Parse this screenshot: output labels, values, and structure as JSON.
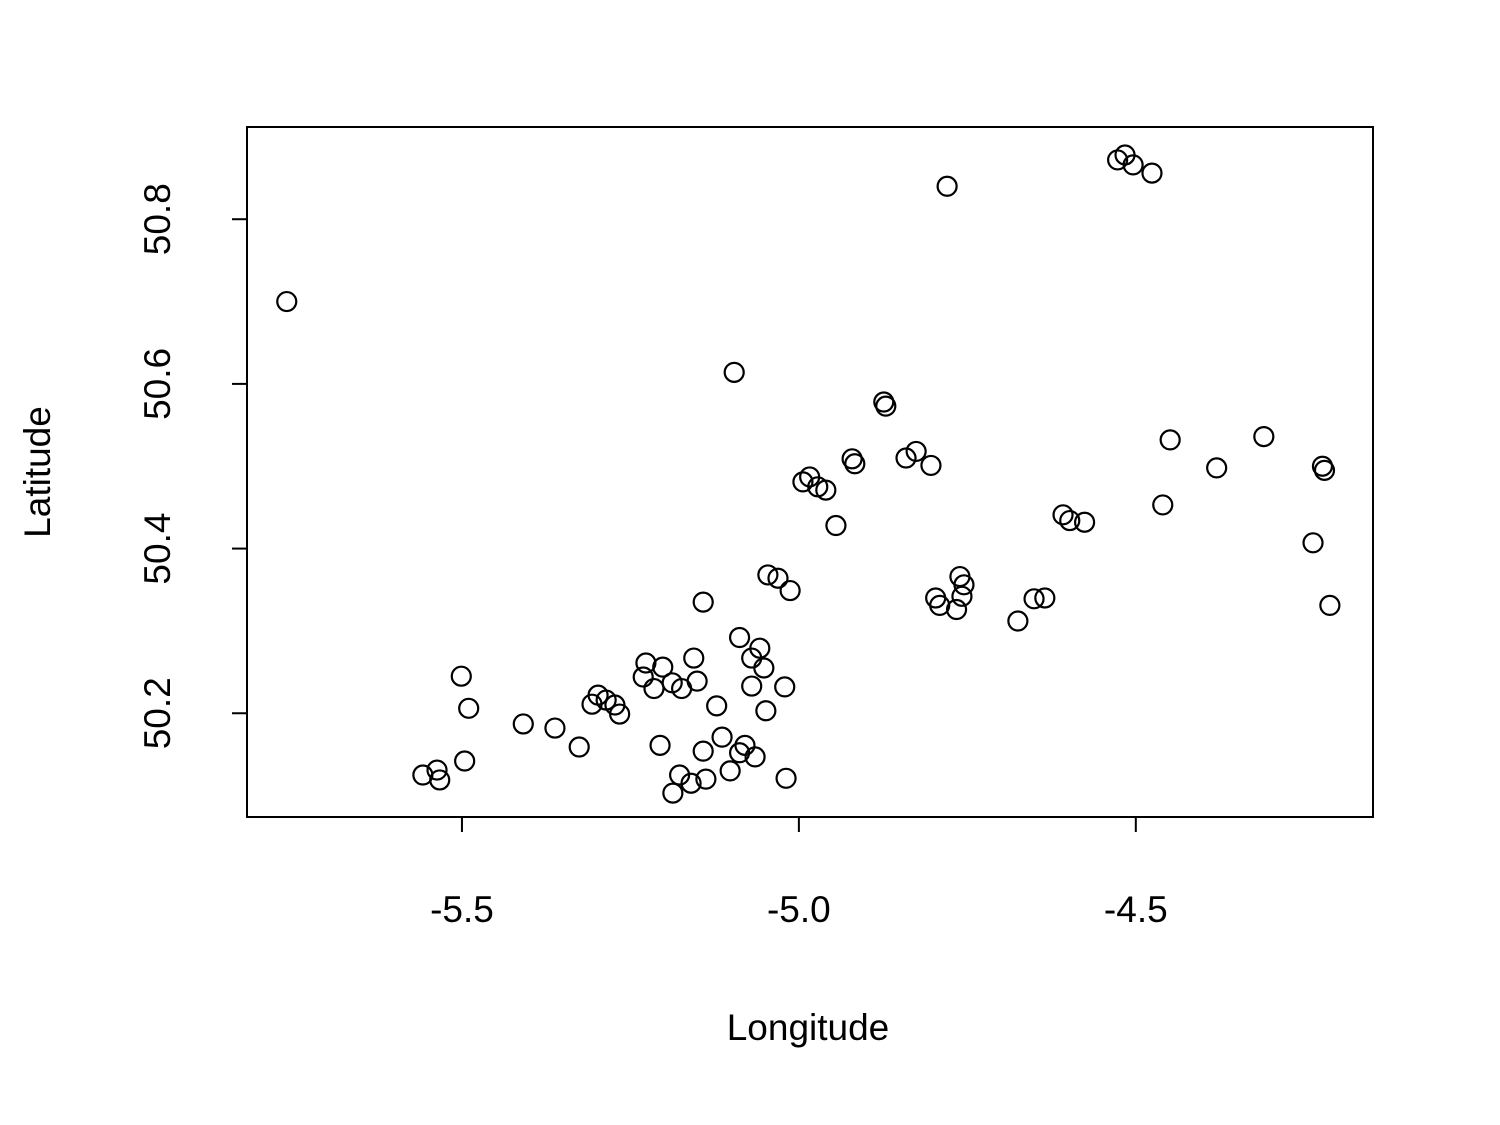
{
  "chart_data": {
    "type": "scatter",
    "x_label": "Longitude",
    "y_label": "Latitude",
    "x": [
      -5.76,
      -4.78,
      -4.516,
      -4.527,
      -4.504,
      -4.476,
      -5.096,
      -4.874,
      -4.871,
      -4.826,
      -4.841,
      -4.804,
      -4.921,
      -4.917,
      -4.984,
      -4.972,
      -4.994,
      -4.96,
      -4.945,
      -4.449,
      -4.31,
      -4.38,
      -4.223,
      -4.22,
      -4.46,
      -4.608,
      -4.598,
      -4.576,
      -4.237,
      -4.212,
      -5.046,
      -5.031,
      -5.013,
      -5.142,
      -4.761,
      -4.755,
      -4.758,
      -4.797,
      -4.791,
      -4.766,
      -4.675,
      -4.651,
      -4.635,
      -5.088,
      -5.058,
      -5.07,
      -5.052,
      -5.07,
      -5.049,
      -5.021,
      -5.156,
      -5.227,
      -5.202,
      -5.231,
      -5.215,
      -5.188,
      -5.151,
      -5.174,
      -5.298,
      -5.286,
      -5.307,
      -5.273,
      -5.266,
      -5.501,
      -5.49,
      -5.409,
      -5.362,
      -5.326,
      -5.122,
      -5.206,
      -5.142,
      -5.114,
      -5.08,
      -5.065,
      -5.088,
      -5.102,
      -5.019,
      -5.496,
      -5.537,
      -5.558,
      -5.533,
      -5.177,
      -5.16,
      -5.138,
      -5.187
    ],
    "values": [
      50.7,
      50.84,
      50.878,
      50.872,
      50.866,
      50.856,
      50.614,
      50.578,
      50.573,
      50.518,
      50.51,
      50.501,
      50.509,
      50.503,
      50.487,
      50.475,
      50.481,
      50.471,
      50.428,
      50.532,
      50.536,
      50.498,
      50.5,
      50.495,
      50.453,
      50.441,
      50.434,
      50.432,
      50.407,
      50.331,
      50.368,
      50.364,
      50.349,
      50.335,
      50.366,
      50.356,
      50.342,
      50.34,
      50.331,
      50.326,
      50.312,
      50.339,
      50.34,
      50.292,
      50.279,
      50.267,
      50.255,
      50.233,
      50.203,
      50.232,
      50.267,
      50.261,
      50.256,
      50.244,
      50.23,
      50.237,
      50.239,
      50.23,
      50.222,
      50.216,
      50.211,
      50.21,
      50.199,
      50.245,
      50.206,
      50.187,
      50.182,
      50.159,
      50.209,
      50.161,
      50.154,
      50.171,
      50.161,
      50.147,
      50.152,
      50.13,
      50.121,
      50.142,
      50.131,
      50.125,
      50.119,
      50.125,
      50.115,
      50.12,
      50.103
    ],
    "color": "#000000",
    "xlim": [
      -5.819,
      -4.148
    ],
    "ylim": [
      50.074,
      50.912
    ],
    "xticks": [
      -5.5,
      {
        "value": -5,
        "label": "-5.0"
      },
      -4.5
    ],
    "yticks": [
      50.2,
      50.4,
      50.6,
      50.8
    ]
  }
}
